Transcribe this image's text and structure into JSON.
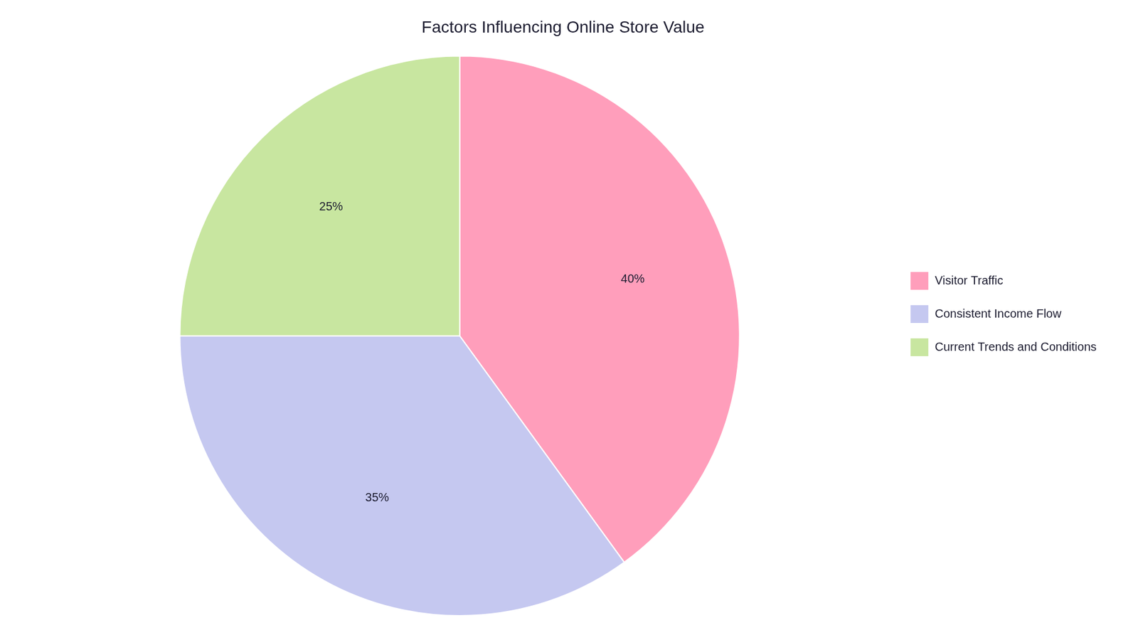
{
  "chart_data": {
    "type": "pie",
    "title": "Factors Influencing Online Store Value",
    "categories": [
      "Visitor Traffic",
      "Consistent Income Flow",
      "Current Trends and Conditions"
    ],
    "values": [
      40,
      35,
      25
    ],
    "value_labels": [
      "40%",
      "35%",
      "25%"
    ],
    "colors": [
      "#FF9EBB",
      "#C5C8F0",
      "#C8E6A0"
    ],
    "data_labels": true,
    "legend": "right"
  }
}
